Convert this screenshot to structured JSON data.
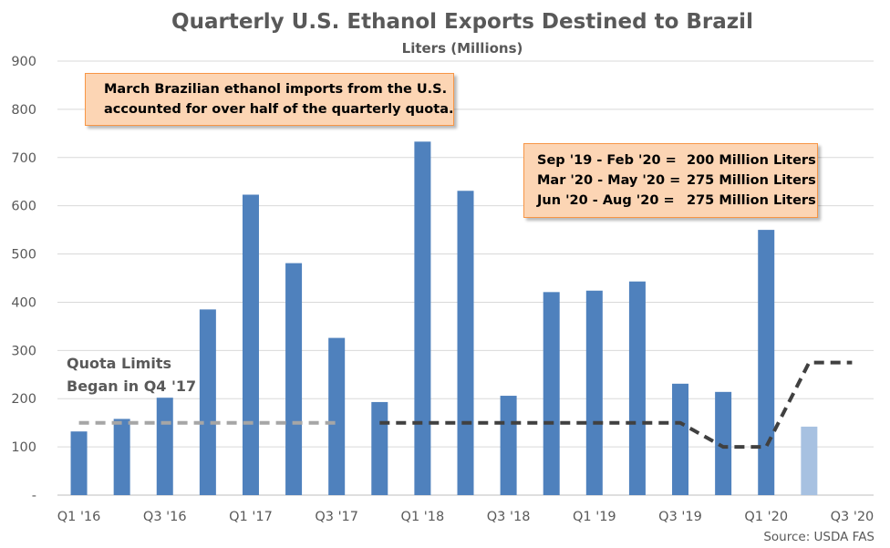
{
  "chart_data": {
    "type": "bar",
    "title": "Quarterly U.S. Ethanol Exports Destined to Brazil",
    "subtitle": "Liters (Millions)",
    "source": "Source: USDA FAS",
    "categories": [
      "Q1 '16",
      "Q2 '16",
      "Q3 '16",
      "Q4 '16",
      "Q1 '17",
      "Q2 '17",
      "Q3 '17",
      "Q4 '17",
      "Q1 '18",
      "Q2 '18",
      "Q3 '18",
      "Q4 '18",
      "Q1 '19",
      "Q2 '19",
      "Q3 '19",
      "Q4 '19",
      "Q1 '20",
      "Q2 '20",
      "Q3 '20"
    ],
    "x_tick_labels": [
      "Q1 '16",
      "Q3 '16",
      "Q1 '17",
      "Q3 '17",
      "Q1 '18",
      "Q3 '18",
      "Q1 '19",
      "Q3 '19",
      "Q1 '20",
      "Q3 '20"
    ],
    "ylim": [
      0,
      900
    ],
    "y_ticks": [
      0,
      100,
      200,
      300,
      400,
      500,
      600,
      700,
      800,
      900
    ],
    "y_tick_labels": [
      "-",
      "100",
      "200",
      "300",
      "400",
      "500",
      "600",
      "700",
      "800",
      "900"
    ],
    "grid": true,
    "series": [
      {
        "type": "bar",
        "values": [
          132,
          158,
          202,
          385,
          623,
          481,
          326,
          193,
          733,
          631,
          206,
          421,
          424,
          443,
          231,
          214,
          550,
          142,
          null
        ],
        "colors": [
          "#4f81bd",
          "#4f81bd",
          "#4f81bd",
          "#4f81bd",
          "#4f81bd",
          "#4f81bd",
          "#4f81bd",
          "#4f81bd",
          "#4f81bd",
          "#4f81bd",
          "#4f81bd",
          "#4f81bd",
          "#4f81bd",
          "#4f81bd",
          "#4f81bd",
          "#4f81bd",
          "#4f81bd",
          "#a7c1e1",
          null
        ]
      },
      {
        "type": "line",
        "style": "dashed",
        "values": [
          150,
          150,
          150,
          150,
          150,
          150,
          150,
          null,
          null,
          null,
          null,
          null,
          null,
          null,
          null,
          null,
          null,
          null,
          null
        ],
        "color": "#a6a6a6"
      },
      {
        "type": "line",
        "style": "dashed",
        "values": [
          null,
          null,
          null,
          null,
          null,
          null,
          null,
          150,
          150,
          150,
          150,
          150,
          150,
          150,
          150,
          100,
          100,
          275,
          275
        ],
        "color": "#404040"
      }
    ],
    "annotations": {
      "quota_note": [
        "Quota Limits",
        "Began in Q4 '17"
      ],
      "imports_note": [
        "March Brazilian ethanol imports from the U.S.",
        "accounted for over half of the quarterly quota."
      ],
      "quota_schedule": [
        {
          "period": "Sep '19 - Feb '20 =",
          "amount": "200 Million Liters"
        },
        {
          "period": "Mar '20 - May '20 =",
          "amount": "275 Million Liters"
        },
        {
          "period": "Jun '20 - Aug '20 =",
          "amount": "275 Million Liters"
        }
      ]
    }
  }
}
